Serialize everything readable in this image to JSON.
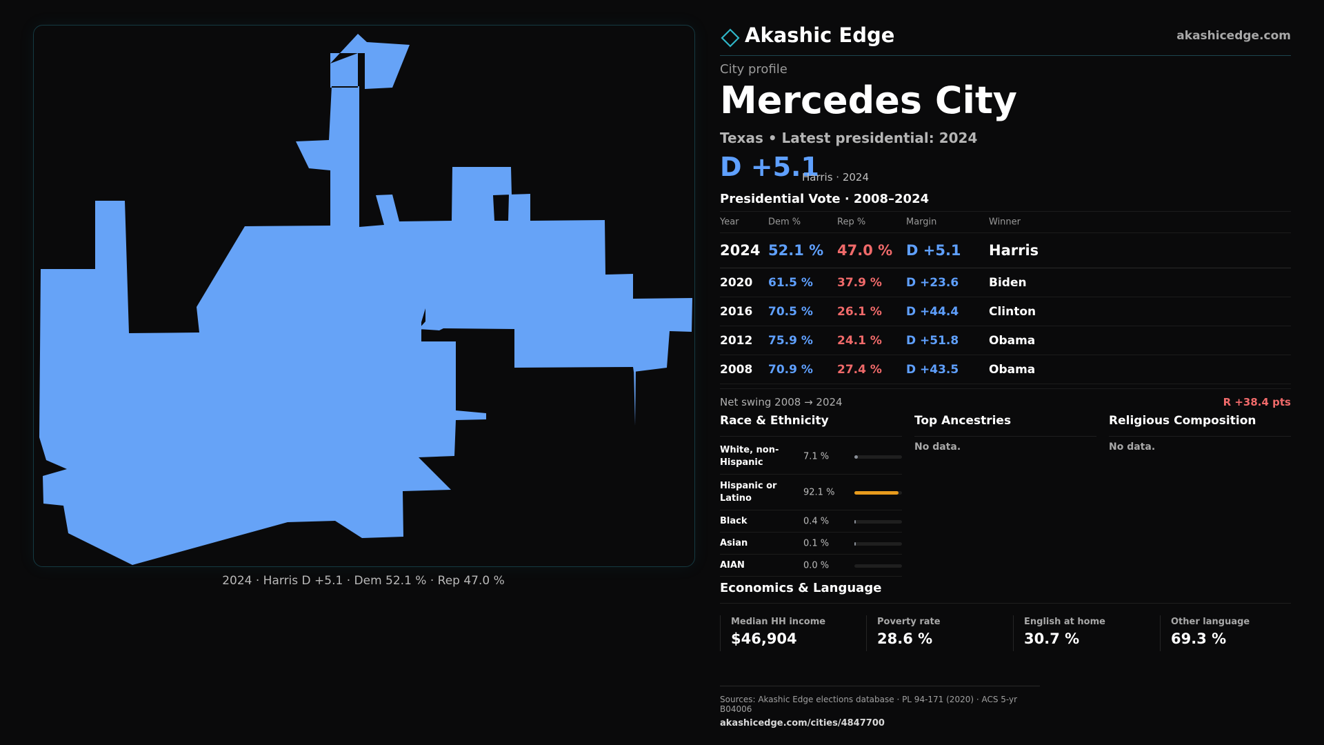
{
  "brand": {
    "name": "Akashic Edge",
    "site": "akashicedge.com"
  },
  "profile": {
    "kicker": "City profile",
    "city": "Mercedes City",
    "subtitle": "Texas • Latest presidential: 2024",
    "margin": "D +5.1",
    "margin_detail": "Harris · 2024"
  },
  "map": {
    "caption": "2024 · Harris D +5.1 · Dem 52.1 % · Rep 47.0 %",
    "fill_color": "#66a3f7",
    "border_color": "#153a42"
  },
  "vote": {
    "title": "Presidential Vote · 2008–2024",
    "columns": [
      "Year",
      "Dem %",
      "Rep %",
      "Margin",
      "Winner"
    ],
    "rows": [
      {
        "year": "2024",
        "dem": "52.1 %",
        "rep": "47.0 %",
        "margin": "D +5.1",
        "winner": "Harris"
      },
      {
        "year": "2020",
        "dem": "61.5 %",
        "rep": "37.9 %",
        "margin": "D +23.6",
        "winner": "Biden"
      },
      {
        "year": "2016",
        "dem": "70.5 %",
        "rep": "26.1 %",
        "margin": "D +44.4",
        "winner": "Clinton"
      },
      {
        "year": "2012",
        "dem": "75.9 %",
        "rep": "24.1 %",
        "margin": "D +51.8",
        "winner": "Obama"
      },
      {
        "year": "2008",
        "dem": "70.9 %",
        "rep": "27.4 %",
        "margin": "D +43.5",
        "winner": "Obama"
      }
    ],
    "swing_label": "Net swing 2008 → 2024",
    "swing_value": "R +38.4 pts"
  },
  "demographics": {
    "race_title": "Race & Ethnicity",
    "race": [
      {
        "label": "White, non-Hispanic",
        "value": "7.1 %",
        "pct": 7.1,
        "color": "#8a8f98"
      },
      {
        "label": "Hispanic or Latino",
        "value": "92.1 %",
        "pct": 92.1,
        "color": "#e89b1d"
      },
      {
        "label": "Black",
        "value": "0.4 %",
        "pct": 0.4,
        "color": "#8a8f98"
      },
      {
        "label": "Asian",
        "value": "0.1 %",
        "pct": 0.1,
        "color": "#8a8f98"
      },
      {
        "label": "AIAN",
        "value": "0.0 %",
        "pct": 0.0,
        "color": "#8a8f98"
      }
    ],
    "ancestry_title": "Top Ancestries",
    "ancestry_note": "No data.",
    "religion_title": "Religious Composition",
    "religion_note": "No data."
  },
  "economics": {
    "title": "Economics & Language",
    "cards": [
      {
        "label": "Median HH income",
        "value": "$46,904"
      },
      {
        "label": "Poverty rate",
        "value": "28.6 %"
      },
      {
        "label": "English at home",
        "value": "30.7 %"
      },
      {
        "label": "Other language",
        "value": "69.3 %"
      }
    ]
  },
  "sources": {
    "text": "Sources: Akashic Edge elections database · PL 94-171 (2020) · ACS 5-yr B04006",
    "url": "akashicedge.com/cities/4847700"
  }
}
